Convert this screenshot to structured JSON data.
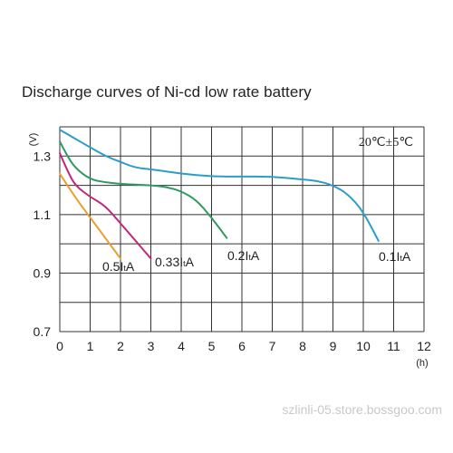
{
  "chart_data": {
    "type": "line",
    "title": "Discharge curves of Ni-cd low rate battery",
    "xlabel": "(h)",
    "ylabel": "(V)",
    "xlim": [
      0,
      12
    ],
    "ylim": [
      0.7,
      1.4
    ],
    "x_ticks": [
      "0",
      "1",
      "2",
      "3",
      "4",
      "5",
      "6",
      "7",
      "8",
      "9",
      "10",
      "11",
      "12"
    ],
    "y_ticks": [
      "0.7",
      "0.9",
      "1.1",
      "1.3"
    ],
    "condition_label": "20℃±5℃",
    "grid": true,
    "series": [
      {
        "name": "0.5ItA",
        "color": "#e8a030",
        "x": [
          0,
          0.5,
          1.0,
          1.5,
          2.0
        ],
        "y": [
          1.24,
          1.16,
          1.09,
          1.02,
          0.95
        ]
      },
      {
        "name": "0.33ItA",
        "color": "#c0287c",
        "x": [
          0,
          0.25,
          0.5,
          1.0,
          1.5,
          2.0,
          2.5,
          3.0
        ],
        "y": [
          1.31,
          1.25,
          1.2,
          1.16,
          1.13,
          1.07,
          1.01,
          0.95
        ]
      },
      {
        "name": "0.2ItA",
        "color": "#2e9a62",
        "x": [
          0,
          0.25,
          0.5,
          1.0,
          1.5,
          2.0,
          3.0,
          3.5,
          4.0,
          4.5,
          5.0,
          5.5
        ],
        "y": [
          1.35,
          1.3,
          1.26,
          1.22,
          1.21,
          1.205,
          1.2,
          1.195,
          1.18,
          1.15,
          1.09,
          1.02
        ]
      },
      {
        "name": "0.1ItA",
        "color": "#2a9dcc",
        "x": [
          0,
          0.5,
          1.0,
          1.5,
          2.0,
          2.5,
          3.0,
          4.0,
          5.0,
          6.0,
          7.0,
          8.0,
          8.5,
          9.0,
          9.5,
          10.0,
          10.5
        ],
        "y": [
          1.39,
          1.36,
          1.33,
          1.3,
          1.28,
          1.26,
          1.255,
          1.24,
          1.23,
          1.23,
          1.23,
          1.22,
          1.215,
          1.2,
          1.17,
          1.11,
          1.01
        ]
      }
    ]
  },
  "watermark": "szlinli-05.store.bossgoo.com"
}
